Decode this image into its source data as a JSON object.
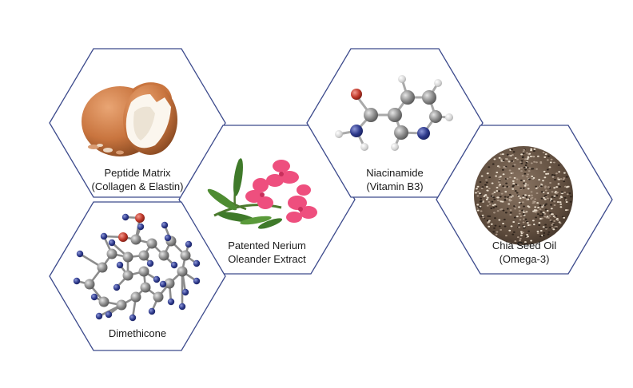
{
  "colors": {
    "hex_stroke": "#3c4a8c",
    "carbon": "#8a8a8a",
    "nitrogen": "#2e3a8c",
    "oxygen": "#c0392b",
    "hydrogen": "#d8d8d8",
    "flower_pink": "#ee4f7e",
    "egg_brown": "#c9753f",
    "chia": "#6e5a48"
  },
  "ingredients": [
    {
      "line1": "Peptide Matrix",
      "line2": "(Collagen & Elastin)",
      "icon": "egg-shells"
    },
    {
      "line1": "Patented Nerium",
      "line2": "Oleander Extract",
      "icon": "oleander-flower"
    },
    {
      "line1": "Niacinamide",
      "line2": "(Vitamin B3)",
      "icon": "niacinamide-molecule"
    },
    {
      "line1": "Chia Seed Oil",
      "line2": "(Omega-3)",
      "icon": "chia-seeds"
    },
    {
      "line1": "Dimethicone",
      "line2": "",
      "icon": "dimethicone-molecule"
    }
  ]
}
